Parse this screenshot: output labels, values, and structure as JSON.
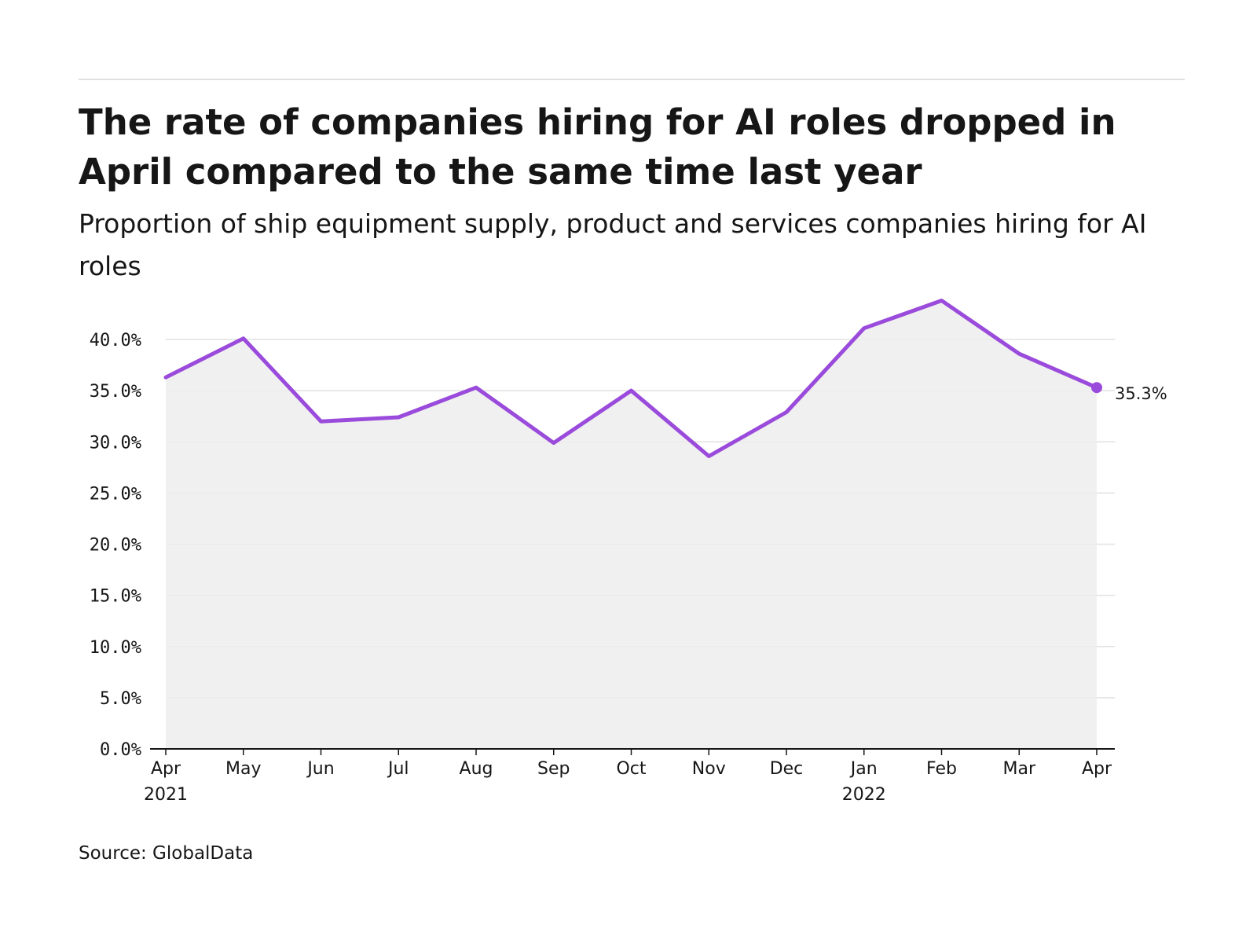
{
  "header": {
    "title": "The rate of companies hiring for AI roles dropped in April compared to the same time last year",
    "subtitle": "Proportion of ship equipment supply, product and services companies hiring for AI roles"
  },
  "footer": {
    "source": "Source: GlobalData"
  },
  "colors": {
    "line": "#9a4bdb",
    "area": "#f0f0f0",
    "grid": "#e0e0e0",
    "axis": "#161616"
  },
  "chart_data": {
    "type": "line",
    "x": [
      "Apr 2021",
      "May 2021",
      "Jun 2021",
      "Jul 2021",
      "Aug 2021",
      "Sep 2021",
      "Oct 2021",
      "Nov 2021",
      "Dec 2021",
      "Jan 2022",
      "Feb 2022",
      "Mar 2022",
      "Apr 2022"
    ],
    "tick_labels": [
      {
        "month": "Apr",
        "year": "2021"
      },
      {
        "month": "May",
        "year": ""
      },
      {
        "month": "Jun",
        "year": ""
      },
      {
        "month": "Jul",
        "year": ""
      },
      {
        "month": "Aug",
        "year": ""
      },
      {
        "month": "Sep",
        "year": ""
      },
      {
        "month": "Oct",
        "year": ""
      },
      {
        "month": "Nov",
        "year": ""
      },
      {
        "month": "Dec",
        "year": ""
      },
      {
        "month": "Jan",
        "year": "2022"
      },
      {
        "month": "Feb",
        "year": ""
      },
      {
        "month": "Mar",
        "year": ""
      },
      {
        "month": "Apr",
        "year": ""
      }
    ],
    "series": [
      {
        "values": [
          36.3,
          40.1,
          32.0,
          32.4,
          35.3,
          29.9,
          35.0,
          28.6,
          32.9,
          41.1,
          43.8,
          38.6,
          35.3
        ]
      }
    ],
    "y_ticks": [
      "0.0%",
      "5.0%",
      "10.0%",
      "15.0%",
      "20.0%",
      "25.0%",
      "30.0%",
      "35.0%",
      "40.0%"
    ],
    "ylim": [
      0,
      40
    ],
    "end_label": "35.3%",
    "grid": true,
    "area_fill": true
  }
}
